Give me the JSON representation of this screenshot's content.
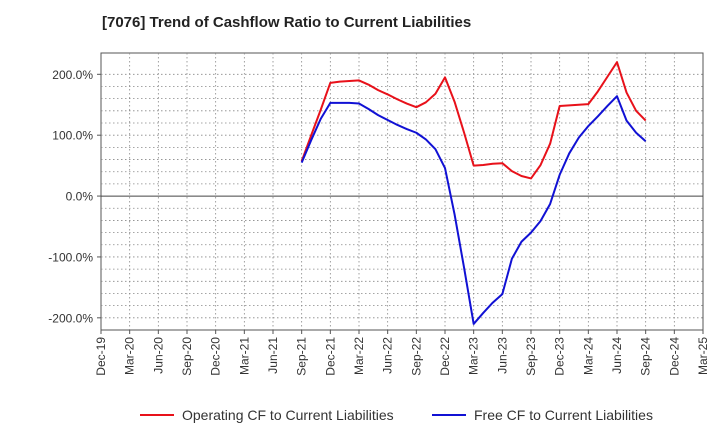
{
  "title": "[7076]  Trend of Cashflow Ratio to Current Liabilities",
  "chart_data": {
    "type": "line",
    "title": "[7076]  Trend of Cashflow Ratio to Current Liabilities",
    "xlabel": "",
    "ylabel": "",
    "x_ticks": [
      "Dec-19",
      "Mar-20",
      "Jun-20",
      "Sep-20",
      "Dec-20",
      "Mar-21",
      "Jun-21",
      "Sep-21",
      "Dec-21",
      "Mar-22",
      "Jun-22",
      "Sep-22",
      "Dec-22",
      "Mar-23",
      "Jun-23",
      "Sep-23",
      "Dec-23",
      "Mar-24",
      "Jun-24",
      "Sep-24",
      "Dec-24",
      "Mar-25"
    ],
    "y_ticks": [
      200,
      100,
      0,
      -100,
      -200
    ],
    "y_tick_labels": [
      "200.0%",
      "100.0%",
      "0.0%",
      "-100.0%",
      "-200.0%"
    ],
    "ylim": [
      -220,
      235
    ],
    "grid": true,
    "legend_position": "bottom",
    "series": [
      {
        "name": "Operating CF to Current Liabilities",
        "color": "#e8111a",
        "points": [
          [
            "Sep-21",
            57
          ],
          [
            "Oct-21",
            100
          ],
          [
            "Nov-21",
            142
          ],
          [
            "Dec-21",
            186
          ],
          [
            "Jan-22",
            188
          ],
          [
            "Feb-22",
            189
          ],
          [
            "Mar-22",
            190
          ],
          [
            "Apr-22",
            183
          ],
          [
            "May-22",
            174
          ],
          [
            "Jun-22",
            167
          ],
          [
            "Jul-22",
            159
          ],
          [
            "Aug-22",
            152
          ],
          [
            "Sep-22",
            146
          ],
          [
            "Oct-22",
            154
          ],
          [
            "Nov-22",
            168
          ],
          [
            "Dec-22",
            195
          ],
          [
            "Jan-23",
            155
          ],
          [
            "Feb-23",
            104
          ],
          [
            "Mar-23",
            50
          ],
          [
            "Apr-23",
            51
          ],
          [
            "May-23",
            53
          ],
          [
            "Jun-23",
            54
          ],
          [
            "Jul-23",
            41
          ],
          [
            "Aug-23",
            33
          ],
          [
            "Sep-23",
            29
          ],
          [
            "Oct-23",
            51
          ],
          [
            "Nov-23",
            86
          ],
          [
            "Dec-23",
            148
          ],
          [
            "Jan-24",
            149
          ],
          [
            "Feb-24",
            150
          ],
          [
            "Mar-24",
            151
          ],
          [
            "Apr-24",
            172
          ],
          [
            "May-24",
            196
          ],
          [
            "Jun-24",
            220
          ],
          [
            "Jul-24",
            170
          ],
          [
            "Aug-24",
            140
          ],
          [
            "Sep-24",
            124
          ]
        ]
      },
      {
        "name": "Free CF to Current Liabilities",
        "color": "#1111d4",
        "points": [
          [
            "Sep-21",
            55
          ],
          [
            "Oct-21",
            92
          ],
          [
            "Nov-21",
            127
          ],
          [
            "Dec-21",
            153
          ],
          [
            "Jan-22",
            153
          ],
          [
            "Feb-22",
            153
          ],
          [
            "Mar-22",
            152
          ],
          [
            "Apr-22",
            143
          ],
          [
            "May-22",
            133
          ],
          [
            "Jun-22",
            125
          ],
          [
            "Jul-22",
            117
          ],
          [
            "Aug-22",
            110
          ],
          [
            "Sep-22",
            104
          ],
          [
            "Oct-22",
            93
          ],
          [
            "Nov-22",
            77
          ],
          [
            "Dec-22",
            46
          ],
          [
            "Jan-23",
            -30
          ],
          [
            "Feb-23",
            -118
          ],
          [
            "Mar-23",
            -210
          ],
          [
            "Apr-23",
            -192
          ],
          [
            "May-23",
            -175
          ],
          [
            "Jun-23",
            -161
          ],
          [
            "Jul-23",
            -103
          ],
          [
            "Aug-23",
            -75
          ],
          [
            "Sep-23",
            -60
          ],
          [
            "Oct-23",
            -41
          ],
          [
            "Nov-23",
            -13
          ],
          [
            "Dec-23",
            35
          ],
          [
            "Jan-24",
            70
          ],
          [
            "Feb-24",
            96
          ],
          [
            "Mar-24",
            115
          ],
          [
            "Apr-24",
            131
          ],
          [
            "May-24",
            148
          ],
          [
            "Jun-24",
            164
          ],
          [
            "Jul-24",
            124
          ],
          [
            "Aug-24",
            104
          ],
          [
            "Sep-24",
            90
          ]
        ]
      }
    ]
  }
}
